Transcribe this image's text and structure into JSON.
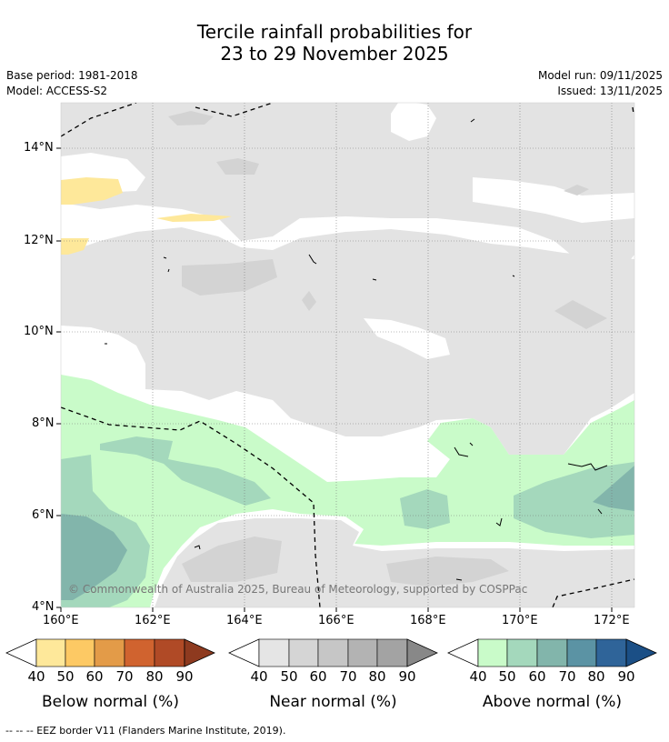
{
  "title": {
    "line1": "Tercile rainfall probabilities for",
    "line2": "23 to 29 November 2025"
  },
  "meta": {
    "base_period": "Base period: 1981-2018",
    "model": "Model: ACCESS-S2",
    "model_run": "Model run: 09/11/2025",
    "issued": "Issued: 13/11/2025"
  },
  "map": {
    "lat_ticks": [
      "14°N",
      "12°N",
      "10°N",
      "8°N",
      "6°N",
      "4°N"
    ],
    "lon_ticks": [
      "160°E",
      "162°E",
      "164°E",
      "166°E",
      "168°E",
      "170°E",
      "172°E"
    ],
    "credit": "© Commonwealth of Australia 2025, Bureau of Meteorology, supported by COSPPac"
  },
  "legend": {
    "ticks": [
      "40",
      "50",
      "60",
      "70",
      "80",
      "90"
    ],
    "below": {
      "label": "Below normal (%)",
      "colors": [
        "#fee89a",
        "#fdc964",
        "#e39b48",
        "#d0632f",
        "#b04a26",
        "#8e3a1f"
      ]
    },
    "near": {
      "label": "Near normal (%)",
      "colors": [
        "#e5e5e5",
        "#d5d5d5",
        "#c6c6c6",
        "#b3b3b3",
        "#a3a3a3",
        "#888888"
      ]
    },
    "above": {
      "label": "Above normal (%)",
      "colors": [
        "#c9fbc9",
        "#a4d8bc",
        "#82b5ab",
        "#5b93a4",
        "#2f6499",
        "#1b4f86"
      ]
    }
  },
  "footer": "--  --  -- EEZ border V11 (Flanders Marine Institute, 2019)."
}
